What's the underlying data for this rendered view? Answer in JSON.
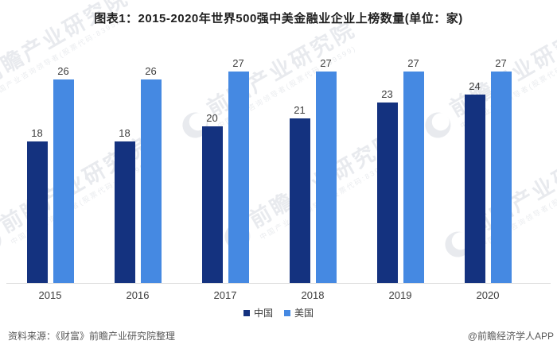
{
  "chart_data": {
    "type": "bar",
    "title": "图表1：2015-2020年世界500强中美金融业企业上榜数量(单位：家)",
    "unit": "家",
    "categories": [
      "2015",
      "2016",
      "2017",
      "2018",
      "2019",
      "2020"
    ],
    "series": [
      {
        "name": "中国",
        "color": "#14327F",
        "values": [
          18,
          18,
          20,
          21,
          23,
          24
        ]
      },
      {
        "name": "美国",
        "color": "#4589E2",
        "values": [
          26,
          26,
          27,
          27,
          27,
          27
        ]
      }
    ],
    "ylim": [
      0,
      30
    ],
    "xlabel": "",
    "ylabel": "",
    "grid": false,
    "legend_position": "bottom",
    "value_labels": true
  },
  "footer": {
    "source": "资料来源：《财富》前瞻产业研究院整理",
    "credit": "@前瞻经济学人APP"
  },
  "watermark": {
    "text": "前瞻产业研究院",
    "subtext": "中国产业咨询领导者(股票代码:839599)"
  }
}
